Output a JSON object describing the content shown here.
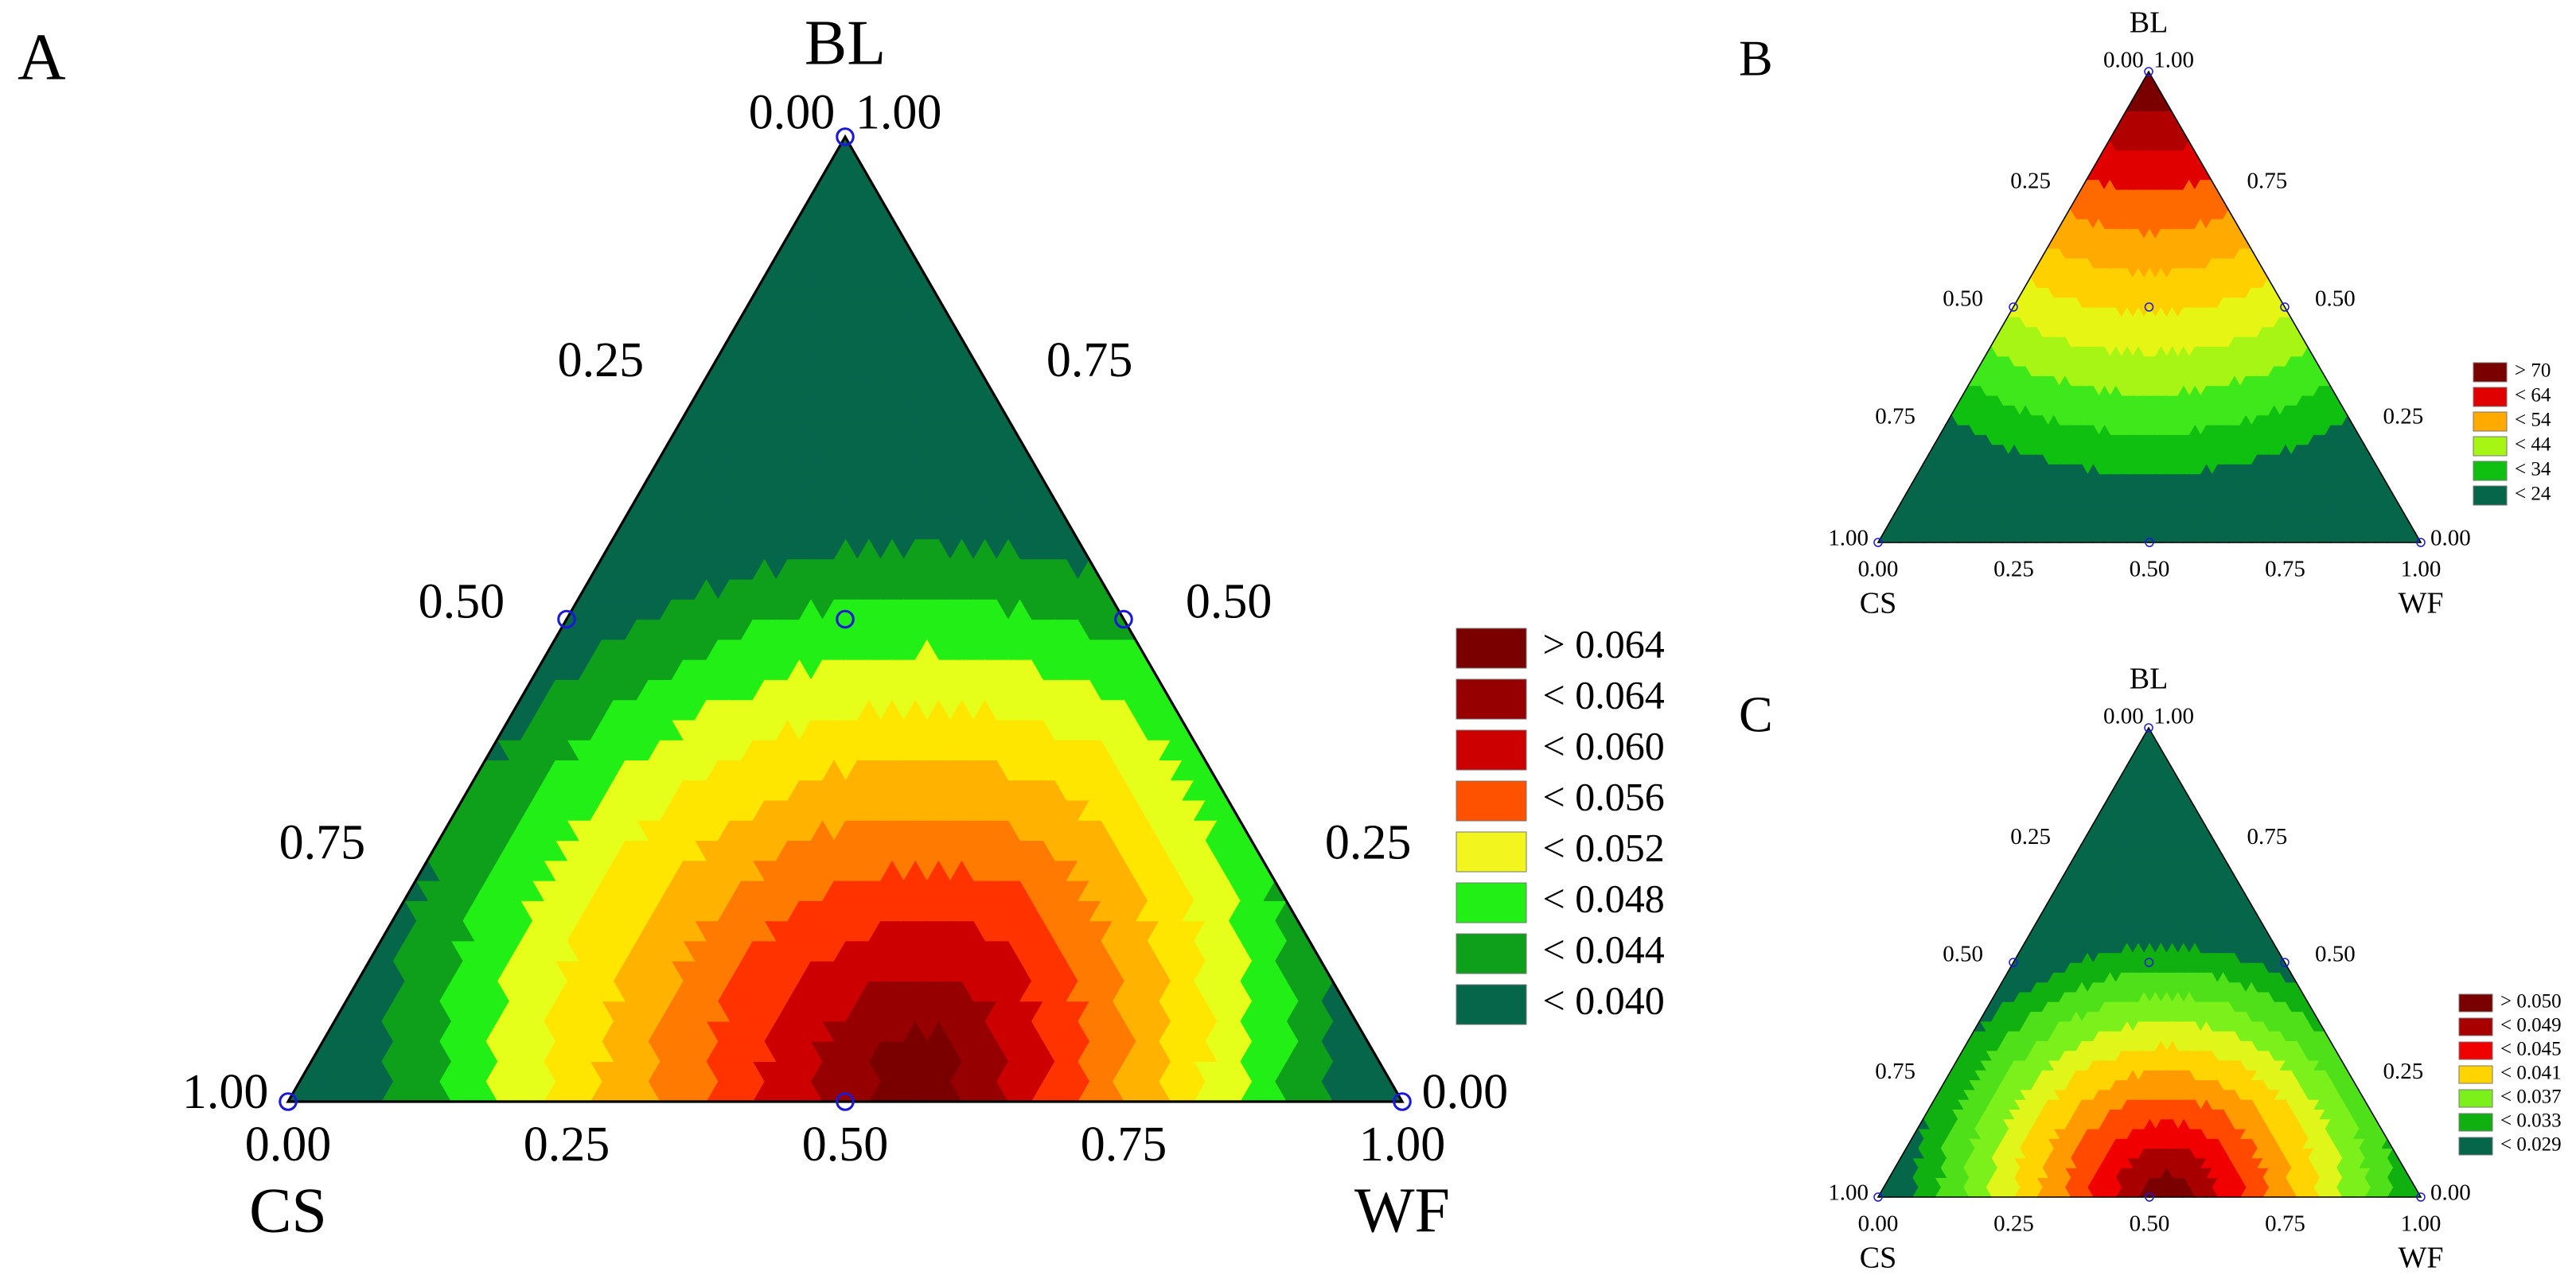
{
  "chart_data": [
    {
      "type": "heatmap",
      "panel_label": "A",
      "apex_label": "BL",
      "left_label": "CS",
      "right_label": "WF",
      "apex_tick": [
        "0.00",
        "1.00"
      ],
      "left_side_ticks": [
        "0.25",
        "0.50",
        "0.75"
      ],
      "right_side_ticks": [
        "0.75",
        "0.50",
        "0.25"
      ],
      "base_ticks": [
        "0.00",
        "0.25",
        "0.50",
        "0.75",
        "1.00"
      ],
      "corner_left_tick": "1.00",
      "corner_right_tick": "0.00",
      "design_points": [
        [
          0,
          1,
          0
        ],
        [
          0.5,
          0.5,
          0
        ],
        [
          0,
          0.5,
          0.5
        ],
        [
          0.25,
          0.5,
          0.25
        ],
        [
          1,
          0,
          0
        ],
        [
          0.5,
          0,
          0.5
        ],
        [
          0,
          0,
          1
        ]
      ],
      "surface_center": [
        0.42,
        0.02,
        0.56
      ],
      "surface_spread": 0.75,
      "wf_boost": 0.35,
      "legend": {
        "entries": [
          "> 0.064",
          "< 0.064",
          "< 0.060",
          "< 0.056",
          "< 0.052",
          "< 0.048",
          "< 0.044",
          "< 0.040"
        ],
        "colors": [
          "#7a0000",
          "#960000",
          "#cc0000",
          "#ff5200",
          "#f2f51e",
          "#22ef16",
          "#0ea01a",
          "#05664a"
        ]
      },
      "color_scale": [
        "#05664a",
        "#0ea01a",
        "#22ef16",
        "#e6ff1a",
        "#ffe600",
        "#ffb300",
        "#ff7a00",
        "#ff3300",
        "#cc0000",
        "#960000",
        "#7a0000"
      ]
    },
    {
      "type": "heatmap",
      "panel_label": "B",
      "apex_label": "BL",
      "left_label": "CS",
      "right_label": "WF",
      "apex_tick": [
        "0.00",
        "1.00"
      ],
      "left_side_ticks": [
        "0.25",
        "0.50",
        "0.75"
      ],
      "right_side_ticks": [
        "0.75",
        "0.50",
        "0.25"
      ],
      "base_ticks": [
        "0.00",
        "0.25",
        "0.50",
        "0.75",
        "1.00"
      ],
      "corner_left_tick": "1.00",
      "corner_right_tick": "0.00",
      "design_points": [
        [
          0,
          1,
          0
        ],
        [
          0.5,
          0.5,
          0
        ],
        [
          0,
          0.5,
          0.5
        ],
        [
          0.25,
          0.5,
          0.25
        ],
        [
          1,
          0,
          0
        ],
        [
          0.5,
          0,
          0.5
        ],
        [
          0,
          0,
          1
        ]
      ],
      "surface_center": [
        0.0,
        1.0,
        0.0
      ],
      "surface_spread": 1.15,
      "wf_boost": 0,
      "legend": {
        "entries": [
          "> 70",
          "< 64",
          "< 54",
          "< 44",
          "< 34",
          "< 24"
        ],
        "colors": [
          "#7a0000",
          "#e00000",
          "#ffaa00",
          "#a6f514",
          "#10c010",
          "#05664a"
        ]
      },
      "color_scale": [
        "#05664a",
        "#10c010",
        "#3fe81a",
        "#a6f514",
        "#e6f514",
        "#ffd000",
        "#ffaa00",
        "#ff6a00",
        "#e00000",
        "#b00000",
        "#7a0000"
      ]
    },
    {
      "type": "heatmap",
      "panel_label": "C",
      "apex_label": "BL",
      "left_label": "CS",
      "right_label": "WF",
      "apex_tick": [
        "0.00",
        "1.00"
      ],
      "left_side_ticks": [
        "0.25",
        "0.50",
        "0.75"
      ],
      "right_side_ticks": [
        "0.75",
        "0.50",
        "0.25"
      ],
      "base_ticks": [
        "0.00",
        "0.25",
        "0.50",
        "0.75",
        "1.00"
      ],
      "corner_left_tick": "1.00",
      "corner_right_tick": "0.00",
      "design_points": [
        [
          0,
          1,
          0
        ],
        [
          0.5,
          0.5,
          0
        ],
        [
          0,
          0.5,
          0.5
        ],
        [
          0.25,
          0.5,
          0.25
        ],
        [
          1,
          0,
          0
        ],
        [
          0.5,
          0,
          0.5
        ],
        [
          0,
          0,
          1
        ]
      ],
      "surface_center": [
        0.47,
        0.0,
        0.53
      ],
      "surface_spread": 0.72,
      "wf_boost": 0,
      "legend": {
        "entries": [
          "> 0.050",
          "< 0.049",
          "< 0.045",
          "< 0.041",
          "< 0.037",
          "< 0.033",
          "< 0.029"
        ],
        "colors": [
          "#7a0000",
          "#a80000",
          "#f00000",
          "#ffd400",
          "#7cf01a",
          "#10b010",
          "#05664a"
        ]
      },
      "color_scale": [
        "#05664a",
        "#10b010",
        "#4fe01a",
        "#7cf01a",
        "#e0f51a",
        "#ffd400",
        "#ff9a00",
        "#ff4a00",
        "#f00000",
        "#a80000",
        "#7a0000"
      ]
    }
  ]
}
